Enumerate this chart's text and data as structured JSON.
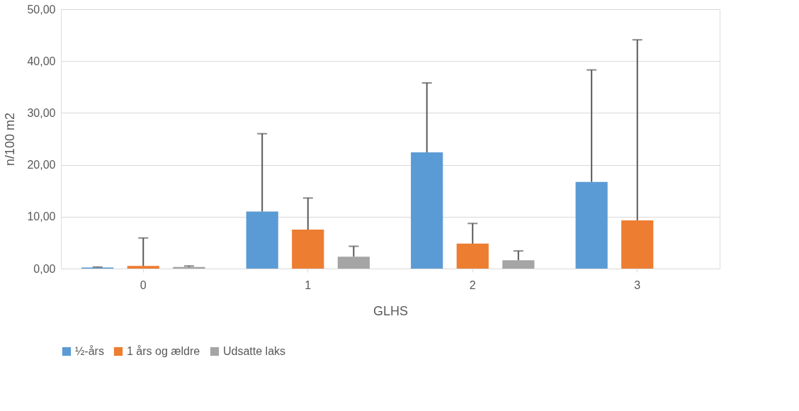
{
  "chart_data": {
    "type": "bar",
    "xlabel": "GLHS",
    "ylabel": "n/100 m2",
    "categories": [
      "0",
      "1",
      "2",
      "3"
    ],
    "series": [
      {
        "name": "½-års",
        "color": "#5b9bd5",
        "values": [
          0.2,
          11.0,
          22.4,
          16.7
        ],
        "errors": [
          [
            0.2,
            0.3
          ],
          [
            11.0,
            26.0
          ],
          [
            22.4,
            35.8
          ],
          [
            16.7,
            38.3
          ]
        ]
      },
      {
        "name": "1 års og ældre",
        "color": "#ed7d31",
        "values": [
          0.5,
          7.5,
          4.8,
          9.3
        ],
        "errors": [
          [
            0.5,
            5.9
          ],
          [
            7.5,
            13.6
          ],
          [
            4.8,
            8.7
          ],
          [
            9.3,
            44.1
          ]
        ]
      },
      {
        "name": "Udsatte laks",
        "color": "#a5a5a5",
        "values": [
          0.3,
          2.3,
          1.6,
          null
        ],
        "errors": [
          [
            0.3,
            0.5
          ],
          [
            2.3,
            4.3
          ],
          [
            1.6,
            3.4
          ],
          null
        ]
      }
    ],
    "ylim": [
      0,
      50
    ],
    "yticks": [
      {
        "value": 0,
        "label": "0,00"
      },
      {
        "value": 10,
        "label": "10,00"
      },
      {
        "value": 20,
        "label": "20,00"
      },
      {
        "value": 30,
        "label": "30,00"
      },
      {
        "value": 40,
        "label": "40,00"
      },
      {
        "value": 50,
        "label": "50,00"
      }
    ],
    "grid": "y",
    "legend": "bottom"
  }
}
